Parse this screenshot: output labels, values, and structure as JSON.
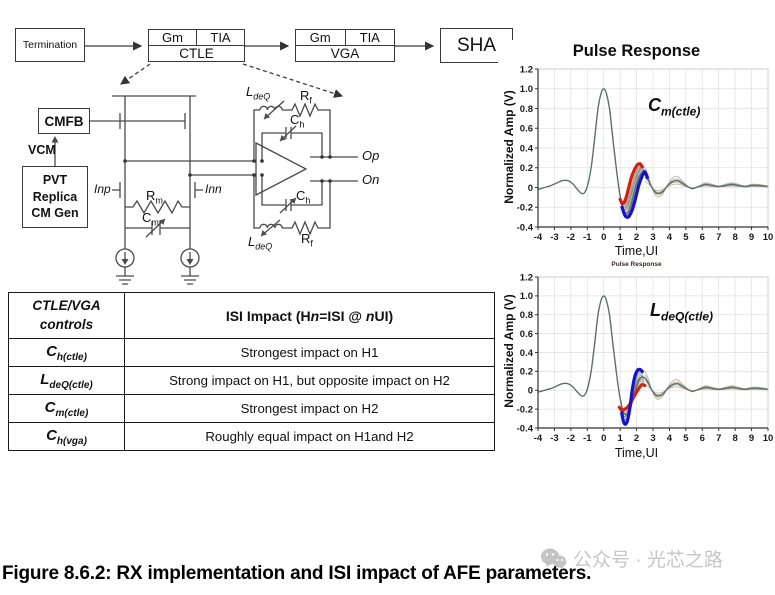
{
  "block_diagram": {
    "termination": "Termination",
    "ctle": {
      "gm": "Gm",
      "tia": "TIA",
      "name": "CTLE"
    },
    "vga": {
      "gm": "Gm",
      "tia": "TIA",
      "name": "VGA"
    },
    "sha": "SHA"
  },
  "schematic": {
    "cmfb": "CMFB",
    "vcm": "VCM",
    "pvt_lines": [
      "PVT",
      "Replica",
      "CM Gen"
    ],
    "inp": "Inp",
    "inn": "Inn",
    "rm": {
      "base": "R",
      "sub": "m"
    },
    "cm": {
      "base": "C",
      "sub": "m"
    },
    "ch_top": {
      "base": "C",
      "sub": "h"
    },
    "ch_bot": {
      "base": "C",
      "sub": "h"
    },
    "ldeq_top": {
      "base": "L",
      "sub": "deQ"
    },
    "ldeq_bot": {
      "base": "L",
      "sub": "deQ"
    },
    "rf_top": {
      "base": "R",
      "sub": "f"
    },
    "rf_bot": {
      "base": "R",
      "sub": "f"
    },
    "op": "Op",
    "on": "On"
  },
  "table": {
    "header": {
      "col1_lines": [
        "CTLE/VGA",
        "controls"
      ],
      "col2_parts": [
        "ISI Impact (H",
        "n",
        "=ISI @ ",
        "n",
        "UI)"
      ]
    },
    "rows": [
      {
        "label": {
          "base": "C",
          "sub": "h(ctle)"
        },
        "impact": "Strongest impact on H1"
      },
      {
        "label": {
          "base": "L",
          "sub": "deQ(ctle)"
        },
        "impact": "Strong impact on H1, but opposite impact on H2"
      },
      {
        "label": {
          "base": "C",
          "sub": "m(ctle)"
        },
        "impact": "Strongest impact on H2"
      },
      {
        "label": {
          "base": "C",
          "sub": "h(vga)"
        },
        "impact": "Roughly equal impact on H1and H2"
      }
    ]
  },
  "chart_data": [
    {
      "type": "line",
      "title": "Pulse Response",
      "inset_label": {
        "base": "C",
        "sub": "m(ctle)"
      },
      "xlabel": "Time,UI",
      "ylabel": "Normalized Amp (V)",
      "xlim": [
        -4,
        10
      ],
      "ylim": [
        -0.4,
        1.2
      ],
      "xticks": [
        "-4",
        "-3",
        "-2",
        "-1",
        "0",
        "1",
        "2",
        "3",
        "4",
        "5",
        "6",
        "7",
        "8",
        "9",
        "10"
      ],
      "yticks": [
        "1.2",
        "1.0",
        "0.8",
        "0.6",
        "0.4",
        "0.2",
        "0",
        "-0.2",
        "-0.4"
      ],
      "grid": true,
      "series": [
        {
          "name": "main",
          "color": "#5c7069",
          "width": 1.4,
          "x": [
            -4,
            -3.6,
            -3.2,
            -2.8,
            -2.5,
            -2.2,
            -1.9,
            -1.6,
            -1.35,
            -1.15,
            -0.95,
            -0.75,
            -0.55,
            -0.35,
            -0.15,
            0,
            0.15,
            0.35,
            0.55,
            0.75,
            0.9,
            1.05,
            1.2,
            1.35,
            1.5,
            1.7,
            1.9,
            2.1,
            2.3,
            2.5,
            2.7,
            2.9,
            3.1,
            3.3,
            3.6,
            3.9,
            4.2,
            4.5,
            4.8,
            5.1,
            5.4,
            5.8,
            6.2,
            6.6,
            7,
            7.4,
            7.8,
            8.2,
            8.6,
            9,
            9.4,
            10
          ],
          "y": [
            -0.02,
            0,
            0.02,
            0.05,
            0.07,
            0.07,
            0.04,
            -0.02,
            -0.06,
            -0.05,
            0.04,
            0.22,
            0.5,
            0.8,
            0.96,
            1.0,
            0.96,
            0.8,
            0.5,
            0.22,
            0.02,
            -0.13,
            -0.23,
            -0.26,
            -0.24,
            -0.15,
            -0.02,
            0.09,
            0.14,
            0.13,
            0.08,
            0.01,
            -0.04,
            -0.06,
            -0.04,
            0.02,
            0.06,
            0.07,
            0.04,
            0.01,
            -0.01,
            0.01,
            0.03,
            0.02,
            0.01,
            0.02,
            0.03,
            0.02,
            0.01,
            0.02,
            0.02,
            0.01
          ]
        },
        {
          "name": "red",
          "color": "#d3200f",
          "width": 3.2,
          "x": [
            1.0,
            1.12,
            1.25,
            1.4,
            1.55,
            1.7,
            1.9,
            2.05,
            2.2,
            2.35
          ],
          "y": [
            -0.12,
            -0.16,
            -0.15,
            -0.08,
            0.02,
            0.11,
            0.19,
            0.23,
            0.24,
            0.21
          ]
        },
        {
          "name": "blue",
          "color": "#1414cc",
          "width": 3.2,
          "x": [
            1.12,
            1.25,
            1.4,
            1.55,
            1.75,
            1.95,
            2.15,
            2.35,
            2.5,
            2.65
          ],
          "y": [
            -0.2,
            -0.27,
            -0.3,
            -0.29,
            -0.22,
            -0.1,
            0.03,
            0.12,
            0.16,
            0.1
          ]
        }
      ],
      "fan_fractions": [
        0.12,
        0.24,
        0.36,
        0.48,
        0.6,
        0.72,
        0.84
      ],
      "fan_colors": [
        "#c2b6a8",
        "#a89e90",
        "#8e968e",
        "#7a7e76",
        "#b3a79f",
        "#94a09a",
        "#857f72"
      ],
      "tail_scales": [
        0.5,
        0.8,
        1.25,
        1.6
      ]
    },
    {
      "type": "line",
      "title": "Pulse Response",
      "inset_label": {
        "base": "L",
        "sub": "deQ(ctle)"
      },
      "xlabel": "Time,UI",
      "ylabel": "Normalized Amp (V)",
      "xlim": [
        -4,
        10
      ],
      "ylim": [
        -0.4,
        1.2
      ],
      "xticks": [
        "-4",
        "-3",
        "-2",
        "-1",
        "0",
        "1",
        "2",
        "3",
        "4",
        "5",
        "6",
        "7",
        "8",
        "9",
        "10"
      ],
      "yticks": [
        "1.2",
        "1.0",
        "0.8",
        "0.6",
        "0.4",
        "0.2",
        "0",
        "-0.2",
        "-0.4"
      ],
      "grid": true,
      "series": [
        {
          "name": "main",
          "color": "#5c7069",
          "width": 1.4,
          "x": [
            -4,
            -3.6,
            -3.2,
            -2.8,
            -2.5,
            -2.2,
            -1.9,
            -1.6,
            -1.35,
            -1.15,
            -0.95,
            -0.75,
            -0.55,
            -0.35,
            -0.15,
            0,
            0.15,
            0.35,
            0.55,
            0.75,
            0.9,
            1.05,
            1.2,
            1.35,
            1.5,
            1.7,
            1.9,
            2.1,
            2.3,
            2.5,
            2.7,
            2.9,
            3.1,
            3.3,
            3.6,
            3.9,
            4.2,
            4.5,
            4.8,
            5.1,
            5.4,
            5.8,
            6.2,
            6.6,
            7,
            7.4,
            7.8,
            8.2,
            8.6,
            9,
            9.4,
            10
          ],
          "y": [
            -0.02,
            0,
            0.02,
            0.05,
            0.07,
            0.07,
            0.04,
            -0.02,
            -0.06,
            -0.05,
            0.04,
            0.22,
            0.5,
            0.8,
            0.96,
            1.0,
            0.96,
            0.8,
            0.5,
            0.22,
            0.02,
            -0.13,
            -0.23,
            -0.26,
            -0.24,
            -0.15,
            -0.02,
            0.09,
            0.14,
            0.13,
            0.08,
            0.01,
            -0.04,
            -0.06,
            -0.04,
            0.02,
            0.06,
            0.07,
            0.04,
            0.01,
            -0.01,
            0.01,
            0.03,
            0.02,
            0.01,
            0.02,
            0.03,
            0.02,
            0.01,
            0.02,
            0.02,
            0.01
          ]
        },
        {
          "name": "red",
          "color": "#d3200f",
          "width": 3.2,
          "x": [
            0.95,
            1.1,
            1.28,
            1.45,
            1.62,
            1.8,
            2.0,
            2.18,
            2.35,
            2.5
          ],
          "y": [
            -0.18,
            -0.21,
            -0.2,
            -0.18,
            -0.14,
            -0.08,
            -0.02,
            0.03,
            0.06,
            0.05
          ]
        },
        {
          "name": "blue",
          "color": "#1414cc",
          "width": 3.2,
          "x": [
            1.1,
            1.2,
            1.32,
            1.45,
            1.6,
            1.75,
            1.9,
            2.05,
            2.2,
            2.35
          ],
          "y": [
            -0.24,
            -0.33,
            -0.36,
            -0.32,
            -0.18,
            0.02,
            0.15,
            0.21,
            0.22,
            0.2
          ]
        }
      ],
      "fan_fractions": [
        0.12,
        0.24,
        0.36,
        0.48,
        0.6,
        0.72,
        0.84
      ],
      "fan_colors": [
        "#c2b6a8",
        "#a89e90",
        "#8e968e",
        "#7a7e76",
        "#b3a79f",
        "#94a09a",
        "#857f72"
      ],
      "tail_scales": [
        0.5,
        0.8,
        1.25,
        1.6
      ]
    }
  ],
  "caption": "Figure 8.6.2: RX implementation and ISI impact of AFE parameters.",
  "watermark": {
    "icon": "wechat-icon",
    "text": "公众号 · 光芯之路"
  }
}
